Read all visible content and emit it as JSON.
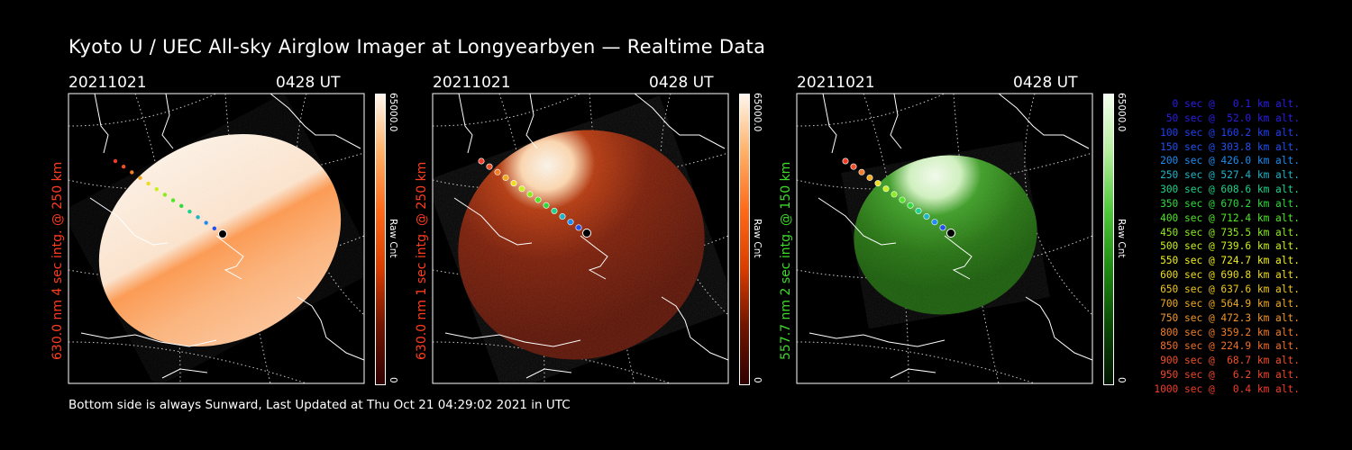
{
  "title": "Kyoto U / UEC All-sky Airglow Imager at Longyearbyen — Realtime Data",
  "footer": "Bottom side is always Sunward, Last Updated at Thu Oct 21 04:29:02 2021 in UTC",
  "panels": [
    {
      "date": "20211021",
      "time": "0428 UT",
      "label": "630.0 nm 4 sec intg. @ 250 km",
      "label_color": "#ff3c1e",
      "cbar_max": "65000.0",
      "cbar_min": "0",
      "cbar_name": "Raw Cnt",
      "cbar_colors": [
        "#fff6ec",
        "#ffb066",
        "#ff6a1a",
        "#d93d00",
        "#701400",
        "#300000"
      ]
    },
    {
      "date": "20211021",
      "time": "0428 UT",
      "label": "630.0 nm 1 sec intg. @ 250 km",
      "label_color": "#ff3c1e",
      "cbar_max": "65000.0",
      "cbar_min": "0",
      "cbar_name": "Raw Cnt",
      "cbar_colors": [
        "#fff6ec",
        "#ffb066",
        "#ff6a1a",
        "#d93d00",
        "#701400",
        "#300000"
      ]
    },
    {
      "date": "20211021",
      "time": "0428 UT",
      "label": "557.7 nm 2 sec intg. @ 150 km",
      "label_color": "#3cdc28",
      "cbar_max": "65000.0",
      "cbar_min": "0",
      "cbar_name": "Raw Cnt",
      "cbar_colors": [
        "#f4ffee",
        "#b4ee9c",
        "#4fc83a",
        "#1f8a12",
        "#0a4a04",
        "#021402"
      ]
    }
  ],
  "legend": [
    {
      "text": "0 sec @   0.1 km alt.",
      "color": "#2a1ee6"
    },
    {
      "text": "50 sec @  52.0 km alt.",
      "color": "#2a1ee6"
    },
    {
      "text": "100 sec @ 160.2 km alt.",
      "color": "#2040f0"
    },
    {
      "text": "150 sec @ 303.8 km alt.",
      "color": "#2050f0"
    },
    {
      "text": "200 sec @ 426.0 km alt.",
      "color": "#1e8cf0"
    },
    {
      "text": "250 sec @ 527.4 km alt.",
      "color": "#1eb4c8"
    },
    {
      "text": "300 sec @ 608.6 km alt.",
      "color": "#1ed28c"
    },
    {
      "text": "350 sec @ 670.2 km alt.",
      "color": "#2ddc3c"
    },
    {
      "text": "400 sec @ 712.4 km alt.",
      "color": "#50e628"
    },
    {
      "text": "450 sec @ 735.5 km alt.",
      "color": "#8ceb1e"
    },
    {
      "text": "500 sec @ 739.6 km alt.",
      "color": "#c8f01e"
    },
    {
      "text": "550 sec @ 724.7 km alt.",
      "color": "#f0f01e"
    },
    {
      "text": "600 sec @ 690.8 km alt.",
      "color": "#f0dc1e"
    },
    {
      "text": "650 sec @ 637.6 km alt.",
      "color": "#f0c81e"
    },
    {
      "text": "700 sec @ 564.9 km alt.",
      "color": "#f0aa1e"
    },
    {
      "text": "750 sec @ 472.3 km alt.",
      "color": "#f09628"
    },
    {
      "text": "800 sec @ 359.2 km alt.",
      "color": "#f07d28"
    },
    {
      "text": "850 sec @ 224.9 km alt.",
      "color": "#f06e28"
    },
    {
      "text": "900 sec @  68.7 km alt.",
      "color": "#f05028"
    },
    {
      "text": "950 sec @   6.2 km alt.",
      "color": "#f04628"
    },
    {
      "text": "1000 sec @   0.4 km alt.",
      "color": "#f03c28"
    }
  ],
  "colors": {
    "trajectory": [
      "#f03c28",
      "#f05028",
      "#f07d28",
      "#f0aa1e",
      "#f0dc1e",
      "#c8f01e",
      "#8ceb1e",
      "#50e628",
      "#2ddc3c",
      "#1ed28c",
      "#1eb4c8",
      "#1e8cf0",
      "#2050f0",
      "#2a1ee6"
    ]
  }
}
